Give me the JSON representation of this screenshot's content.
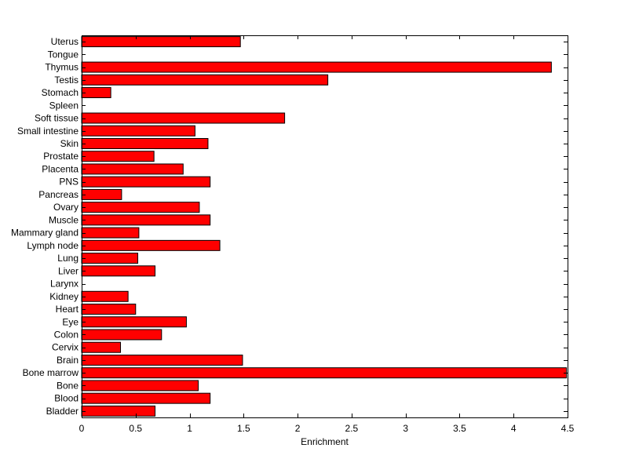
{
  "chart_data": {
    "type": "bar",
    "orientation": "horizontal",
    "title": "",
    "xlabel": "Enrichment",
    "ylabel": "",
    "xlim": [
      0,
      4.5
    ],
    "xticks": [
      0,
      0.5,
      1,
      1.5,
      2,
      2.5,
      3,
      3.5,
      4,
      4.5
    ],
    "xtick_labels": [
      "0",
      "0.5",
      "1",
      "1.5",
      "2",
      "2.5",
      "3",
      "3.5",
      "4",
      "4.5"
    ],
    "grid": false,
    "legend": "none",
    "bar_color": "#ff0000",
    "bar_edge_color": "#000000",
    "categories": [
      "Bladder",
      "Blood",
      "Bone",
      "Bone marrow",
      "Brain",
      "Cervix",
      "Colon",
      "Eye",
      "Heart",
      "Kidney",
      "Larynx",
      "Liver",
      "Lung",
      "Lymph node",
      "Mammary gland",
      "Muscle",
      "Ovary",
      "Pancreas",
      "PNS",
      "Placenta",
      "Prostate",
      "Skin",
      "Small intestine",
      "Soft tissue",
      "Spleen",
      "Stomach",
      "Testis",
      "Thymus",
      "Tongue",
      "Uterus"
    ],
    "values": [
      0.68,
      1.19,
      1.08,
      4.49,
      1.49,
      0.36,
      0.74,
      0.97,
      0.5,
      0.43,
      0,
      0.68,
      0.52,
      1.28,
      0.53,
      1.19,
      1.09,
      0.37,
      1.19,
      0.94,
      0.67,
      1.17,
      1.05,
      1.88,
      0,
      0.27,
      2.28,
      4.35,
      0,
      1.47
    ]
  }
}
